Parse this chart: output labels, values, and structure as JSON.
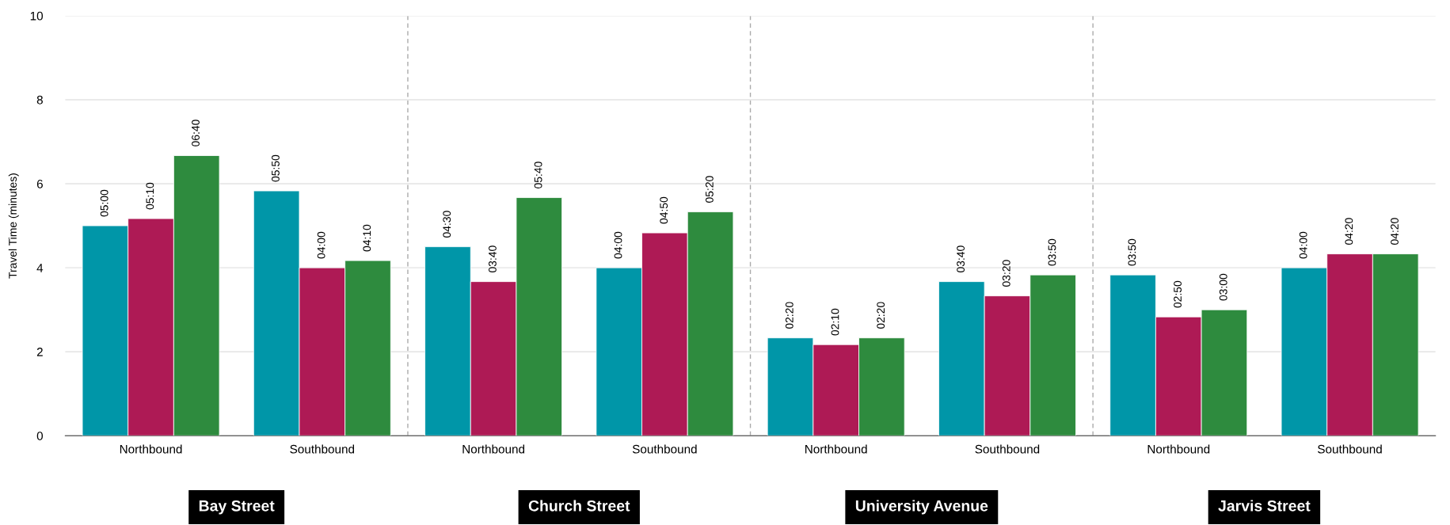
{
  "chart_data": {
    "type": "bar",
    "ylabel": "Travel Time (minutes)",
    "categories": [
      "Northbound",
      "Southbound",
      "Northbound",
      "Southbound",
      "Northbound",
      "Southbound",
      "Northbound",
      "Southbound"
    ],
    "series": [
      {
        "color": "#0096a8",
        "values": [
          5.0,
          5.83,
          4.5,
          4.0,
          2.33,
          3.67,
          3.83,
          4.0
        ],
        "value_labels": [
          "05:00",
          "05:50",
          "04:30",
          "04:00",
          "02:20",
          "03:40",
          "03:50",
          "04:00"
        ]
      },
      {
        "color": "#ae1a55",
        "values": [
          5.17,
          4.0,
          3.67,
          4.83,
          2.17,
          3.33,
          2.83,
          4.33
        ],
        "value_labels": [
          "05:10",
          "04:00",
          "03:40",
          "04:50",
          "02:10",
          "03:20",
          "02:50",
          "04:20"
        ]
      },
      {
        "color": "#2e8b3e",
        "values": [
          6.67,
          4.17,
          5.67,
          5.33,
          2.33,
          3.83,
          3.0,
          4.33
        ],
        "value_labels": [
          "06:40",
          "04:10",
          "05:40",
          "05:20",
          "02:20",
          "03:50",
          "03:00",
          "04:20"
        ]
      }
    ],
    "ylim": [
      0,
      10
    ],
    "yticks": [
      0,
      2,
      4,
      6,
      8,
      10
    ],
    "grid": "y",
    "legend": false,
    "annotations": [
      "Bay Street",
      "Church Street",
      "University Avenue",
      "Jarvis Street"
    ]
  }
}
